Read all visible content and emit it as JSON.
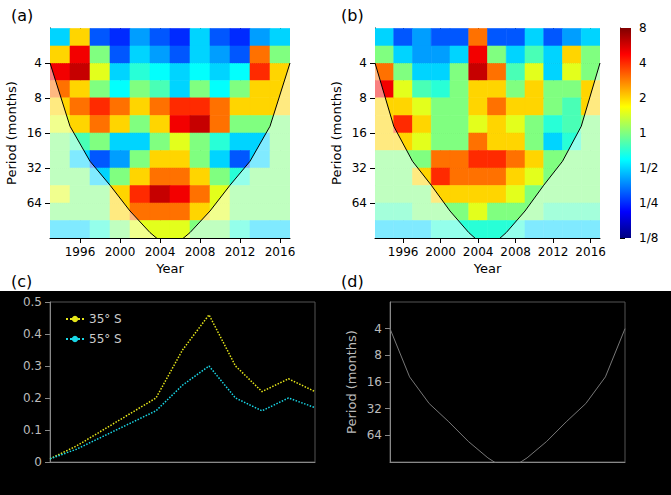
{
  "chart_data": [
    {
      "type": "heatmap",
      "panel": "(a)",
      "xlabel": "Year",
      "ylabel": "Period (months)",
      "xlim": [
        1993,
        2017
      ],
      "xticks": [
        1996,
        2000,
        2004,
        2008,
        2012,
        2016
      ],
      "ylim": [
        2,
        128
      ],
      "yticks": [
        4,
        8,
        16,
        32,
        64
      ],
      "log": "y",
      "grid": true,
      "x": [
        1994,
        1996,
        1998,
        2000,
        2002,
        2004,
        2006,
        2008,
        2010,
        2012,
        2014,
        2016
      ],
      "periods": [
        2.4,
        3.4,
        4.8,
        6.7,
        9.5,
        13.5,
        19,
        27,
        38,
        54,
        76,
        108
      ],
      "power": [
        [
          0.5,
          2,
          0.3,
          0.25,
          0.4,
          0.3,
          0.25,
          0.5,
          0.3,
          0.25,
          0.4,
          0.5
        ],
        [
          2,
          5,
          1,
          0.3,
          0.5,
          0.4,
          0.3,
          0.5,
          0.4,
          0.3,
          3,
          1
        ],
        [
          5,
          6,
          1.5,
          0.5,
          0.7,
          0.6,
          0.5,
          0.6,
          0.5,
          0.6,
          4,
          2
        ],
        [
          3,
          2,
          1,
          0.6,
          1,
          0.8,
          0.5,
          1,
          0.6,
          1,
          2,
          2
        ],
        [
          2,
          3,
          4,
          3,
          2,
          3,
          4,
          4,
          3,
          2,
          2,
          2
        ],
        [
          1.5,
          2,
          3,
          2,
          1,
          2,
          5,
          6,
          3,
          1,
          1,
          1
        ],
        [
          1,
          0.8,
          1,
          0.5,
          0.5,
          1,
          1.5,
          1,
          0.7,
          0.5,
          0.5,
          1
        ],
        [
          1,
          0.5,
          0.3,
          0.4,
          1,
          2,
          2,
          1,
          0.5,
          0.3,
          0.5,
          1
        ],
        [
          1,
          1,
          0.5,
          1,
          2,
          3,
          3,
          2,
          1,
          0.7,
          1,
          1
        ],
        [
          1.5,
          1,
          1,
          2,
          4,
          6,
          5,
          3,
          1.5,
          1,
          1,
          1
        ],
        [
          1,
          1,
          1,
          2,
          3,
          3,
          3,
          2,
          1.5,
          1,
          1,
          1
        ],
        [
          0.5,
          0.5,
          0.7,
          1,
          1.5,
          1.5,
          1.5,
          1,
          1,
          0.7,
          0.5,
          0.5
        ]
      ],
      "colorbar": {
        "range": [
          0.125,
          8
        ]
      },
      "coi": {
        "x": [
          1993,
          1995,
          1997,
          1999,
          2001,
          2003,
          2005,
          2007,
          2009,
          2011,
          2013,
          2015,
          2017
        ],
        "period": [
          4,
          14,
          28,
          45,
          75,
          115,
          160,
          115,
          75,
          45,
          28,
          14,
          4
        ]
      }
    },
    {
      "type": "heatmap",
      "panel": "(b)",
      "xlabel": "Year",
      "ylabel": "Period (months)",
      "xlim": [
        1993,
        2017
      ],
      "xticks": [
        1996,
        2000,
        2004,
        2008,
        2012,
        2016
      ],
      "ylim": [
        2,
        128
      ],
      "yticks": [
        4,
        8,
        16,
        32,
        64
      ],
      "log": "y",
      "grid": true,
      "x": [
        1994,
        1996,
        1998,
        2000,
        2002,
        2004,
        2006,
        2008,
        2010,
        2012,
        2014,
        2016
      ],
      "periods": [
        2.4,
        3.4,
        4.8,
        6.7,
        9.5,
        13.5,
        19,
        27,
        38,
        54,
        76,
        108
      ],
      "power": [
        [
          0.5,
          0.3,
          0.4,
          0.3,
          0.3,
          3,
          0.3,
          0.3,
          0.5,
          0.3,
          0.4,
          0.5
        ],
        [
          1,
          0.5,
          0.4,
          0.4,
          0.5,
          5,
          1,
          0.5,
          0.8,
          0.5,
          2,
          1
        ],
        [
          3,
          1,
          0.5,
          0.5,
          1,
          6,
          3,
          0.8,
          1.5,
          0.5,
          1.5,
          1
        ],
        [
          5,
          1.5,
          0.8,
          0.7,
          1,
          2,
          2,
          1,
          2,
          1,
          1,
          2
        ],
        [
          2,
          2,
          1.5,
          1,
          1,
          2,
          3,
          2,
          2,
          1,
          0.8,
          2
        ],
        [
          2,
          4,
          2,
          1,
          1,
          1.5,
          2,
          1.5,
          1,
          0.7,
          0.8,
          1
        ],
        [
          2,
          2,
          1.5,
          1,
          1,
          3,
          2,
          2,
          1,
          0.5,
          0.7,
          1
        ],
        [
          1,
          1,
          1,
          3,
          3,
          4,
          4,
          3,
          2,
          1,
          1,
          1
        ],
        [
          1,
          1,
          2,
          4,
          3,
          3,
          3,
          2,
          1.5,
          1,
          1,
          1
        ],
        [
          1,
          1,
          1,
          2,
          2,
          2,
          2,
          1.5,
          1,
          1,
          1,
          1
        ],
        [
          0.8,
          0.8,
          1,
          1,
          1,
          1.5,
          1,
          1,
          1,
          0.8,
          0.8,
          0.8
        ],
        [
          0.5,
          0.5,
          0.5,
          0.7,
          0.7,
          0.7,
          0.7,
          0.7,
          0.5,
          0.5,
          0.5,
          0.5
        ]
      ],
      "colorbar": {
        "range": [
          0.125,
          8
        ],
        "ticks": [
          8,
          4,
          2,
          1,
          {
            "value": 0.5,
            "label": "1/2"
          },
          {
            "value": 0.25,
            "label": "1/4"
          },
          {
            "value": 0.125,
            "label": "1/8"
          }
        ]
      },
      "coi": {
        "x": [
          1993,
          1995,
          1997,
          1999,
          2001,
          2003,
          2005,
          2007,
          2009,
          2011,
          2013,
          2015,
          2017
        ],
        "period": [
          4,
          14,
          28,
          45,
          75,
          115,
          160,
          115,
          75,
          45,
          28,
          14,
          4
        ]
      }
    },
    {
      "type": "line",
      "panel": "(c)",
      "x": [
        0,
        1,
        2,
        3,
        4,
        5,
        6,
        7,
        8,
        9,
        10
      ],
      "xlim": [
        0,
        10
      ],
      "ylim": [
        0,
        0.5
      ],
      "yticks": [
        0,
        0.1,
        0.2,
        0.3,
        0.4,
        0.5
      ],
      "tick_labels": "y",
      "legend": "upper left",
      "series": [
        {
          "name": "35° S",
          "color": "#e6e619",
          "line_style": "dotted",
          "values": [
            0.01,
            0.05,
            0.1,
            0.15,
            0.2,
            0.35,
            0.46,
            0.3,
            0.22,
            0.26,
            0.22
          ]
        },
        {
          "name": "55° S",
          "color": "#19d6e6",
          "line_style": "dotted",
          "values": [
            0.01,
            0.04,
            0.08,
            0.12,
            0.16,
            0.24,
            0.3,
            0.2,
            0.16,
            0.2,
            0.17
          ]
        }
      ]
    },
    {
      "type": "wavelet",
      "panel": "(d)",
      "ylabel": "Period (months)",
      "xlim": [
        1993,
        2017
      ],
      "ylim": [
        2,
        128
      ],
      "yticks": [
        4,
        8,
        16,
        32,
        64
      ],
      "log": "y",
      "tick_labels": "y",
      "coi": {
        "x": [
          1993,
          1995,
          1997,
          1999,
          2001,
          2003,
          2005,
          2007,
          2009,
          2011,
          2013,
          2015,
          2017
        ],
        "period": [
          4,
          14,
          28,
          45,
          75,
          115,
          160,
          115,
          75,
          45,
          28,
          14,
          4
        ]
      }
    }
  ]
}
